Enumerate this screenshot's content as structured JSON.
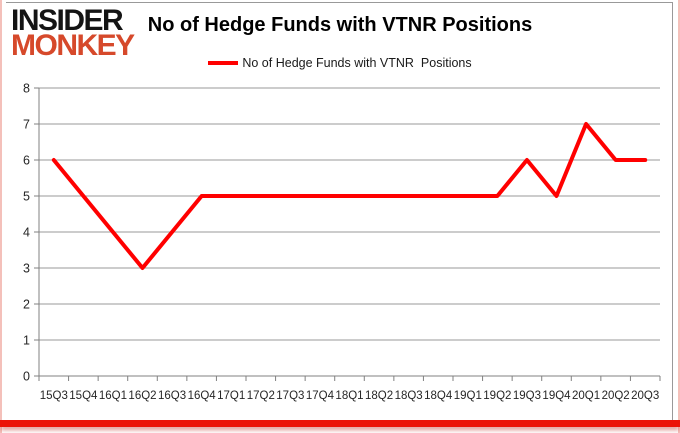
{
  "logo": {
    "top": "INSIDER",
    "bottom": "MONKEY"
  },
  "legend": {
    "label": "No of Hedge Funds with VTNR  Positions"
  },
  "chart_data": {
    "type": "line",
    "title": "No of Hedge Funds with VTNR Positions",
    "xlabel": "",
    "ylabel": "",
    "ylim": [
      0,
      8
    ],
    "ytick_step": 1,
    "grid": true,
    "legend_position": "top-center",
    "categories": [
      "15Q3",
      "15Q4",
      "16Q1",
      "16Q2",
      "16Q3",
      "16Q4",
      "17Q1",
      "17Q2",
      "17Q3",
      "17Q4",
      "18Q1",
      "18Q2",
      "18Q3",
      "18Q4",
      "19Q1",
      "19Q2",
      "19Q3",
      "19Q4",
      "20Q1",
      "20Q2",
      "20Q3"
    ],
    "series": [
      {
        "name": "No of Hedge Funds with VTNR Positions",
        "color": "#ff0000",
        "values": [
          6,
          5,
          4,
          3,
          4,
          5,
          5,
          5,
          5,
          5,
          5,
          5,
          5,
          5,
          5,
          5,
          6,
          5,
          7,
          6,
          6
        ]
      }
    ]
  },
  "colors": {
    "grid": "#9a9a9a",
    "axis": "#808080",
    "tick_label": "#262626",
    "title": "#000000",
    "logo_top": "#141414",
    "logo_bottom": "#d6492b",
    "bottom_bar": "#eb1408",
    "edge_pink": "#f4c0ba",
    "frame_gray": "#999999"
  }
}
